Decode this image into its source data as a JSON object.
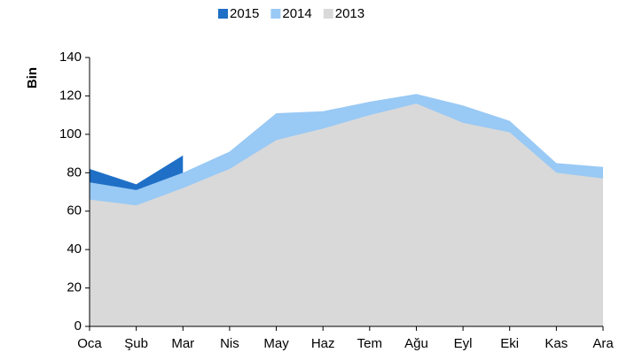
{
  "chart_data": {
    "type": "area",
    "y_label": "Bin",
    "categories": [
      "Oca",
      "Şub",
      "Mar",
      "Nis",
      "May",
      "Haz",
      "Tem",
      "Ağu",
      "Eyl",
      "Eki",
      "Kas",
      "Ara"
    ],
    "series": [
      {
        "name": "2015",
        "color": "#1f6fc7",
        "values": [
          82,
          74,
          89,
          null,
          null,
          null,
          null,
          null,
          null,
          null,
          null,
          null
        ]
      },
      {
        "name": "2014",
        "color": "#99c9f5",
        "values": [
          75,
          71,
          80,
          91,
          111,
          112,
          117,
          121,
          115,
          107,
          85,
          83
        ]
      },
      {
        "name": "2013",
        "color": "#d9d9d9",
        "values": [
          66,
          63,
          72,
          82,
          97,
          103,
          110,
          116,
          106,
          101,
          80,
          77
        ]
      }
    ],
    "ylim": [
      0,
      140
    ],
    "yticks": [
      0,
      20,
      40,
      60,
      80,
      100,
      120,
      140
    ],
    "legend": "top"
  }
}
